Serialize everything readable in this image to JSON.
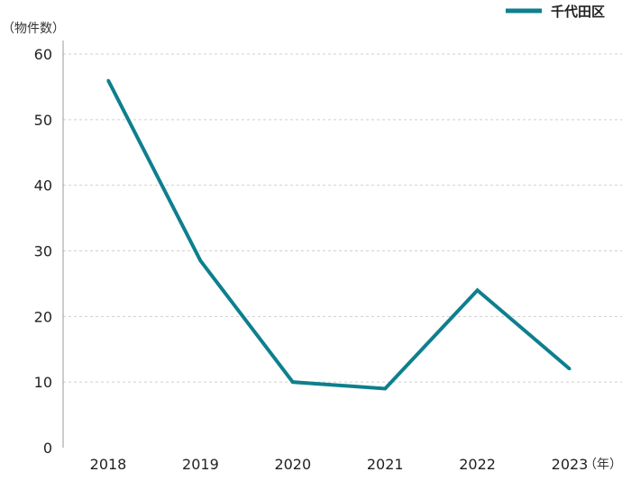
{
  "chart_data": {
    "type": "line",
    "categories": [
      "2018",
      "2019",
      "2020",
      "2021",
      "2022",
      "2023"
    ],
    "series": [
      {
        "name": "千代田区",
        "values": [
          56,
          28.5,
          10,
          9,
          24,
          12
        ],
        "color": "#0e7f8e"
      }
    ],
    "ylabel": "（物件数）",
    "xlabel": "（年）",
    "ylim": [
      0,
      60
    ],
    "yticks": [
      0,
      10,
      20,
      30,
      40,
      50,
      60
    ],
    "grid": true,
    "legend": "top-right"
  }
}
